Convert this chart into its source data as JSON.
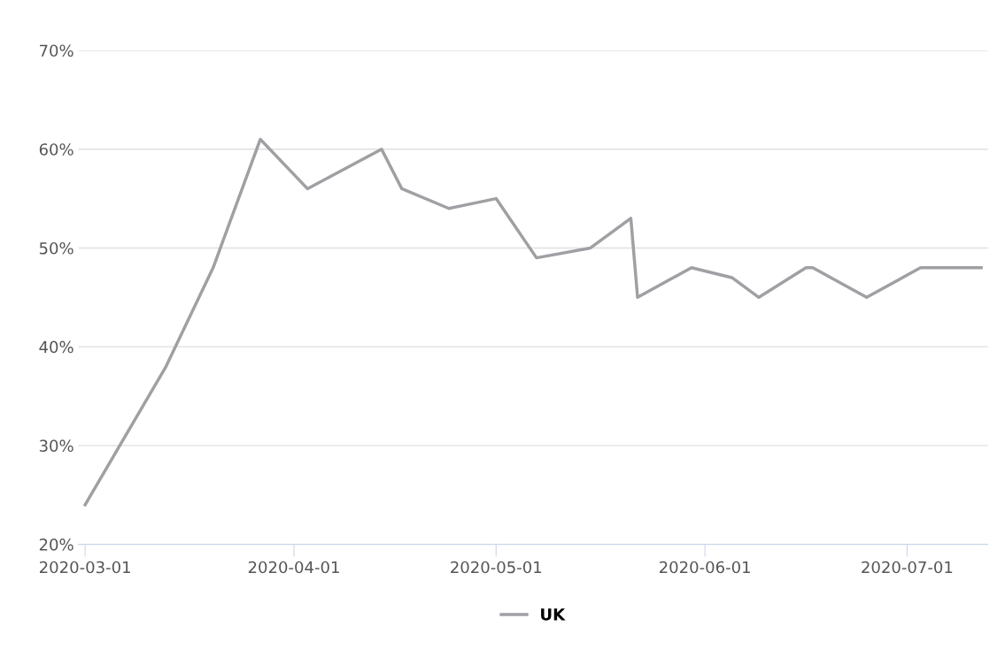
{
  "chart_data": {
    "type": "line",
    "x": [
      "2020-03-01",
      "2020-03-13",
      "2020-03-20",
      "2020-03-27",
      "2020-04-03",
      "2020-04-14",
      "2020-04-17",
      "2020-04-24",
      "2020-05-01",
      "2020-05-07",
      "2020-05-15",
      "2020-05-21",
      "2020-05-22",
      "2020-05-30",
      "2020-06-05",
      "2020-06-09",
      "2020-06-16",
      "2020-06-17",
      "2020-06-25",
      "2020-07-03",
      "2020-07-12"
    ],
    "series": [
      {
        "name": "UK",
        "color": "#a0a0a4",
        "values": [
          24,
          38,
          48,
          61,
          56,
          60,
          56,
          54,
          55,
          49,
          50,
          53,
          45,
          48,
          47,
          45,
          48,
          48,
          45,
          48,
          48
        ]
      }
    ],
    "xlim": [
      "2020-02-29",
      "2020-07-13"
    ],
    "xticks": [
      "2020-03-01",
      "2020-04-01",
      "2020-05-01",
      "2020-06-01",
      "2020-07-01"
    ],
    "ylim": [
      20,
      70
    ],
    "yticks": [
      {
        "value": 20,
        "label": "20%"
      },
      {
        "value": 30,
        "label": "30%"
      },
      {
        "value": 40,
        "label": "40%"
      },
      {
        "value": 50,
        "label": "50%"
      },
      {
        "value": 60,
        "label": "60%"
      },
      {
        "value": 70,
        "label": "70%"
      }
    ],
    "grid": "y",
    "legend": "bottom",
    "marker": "none",
    "line_style": "solid"
  }
}
